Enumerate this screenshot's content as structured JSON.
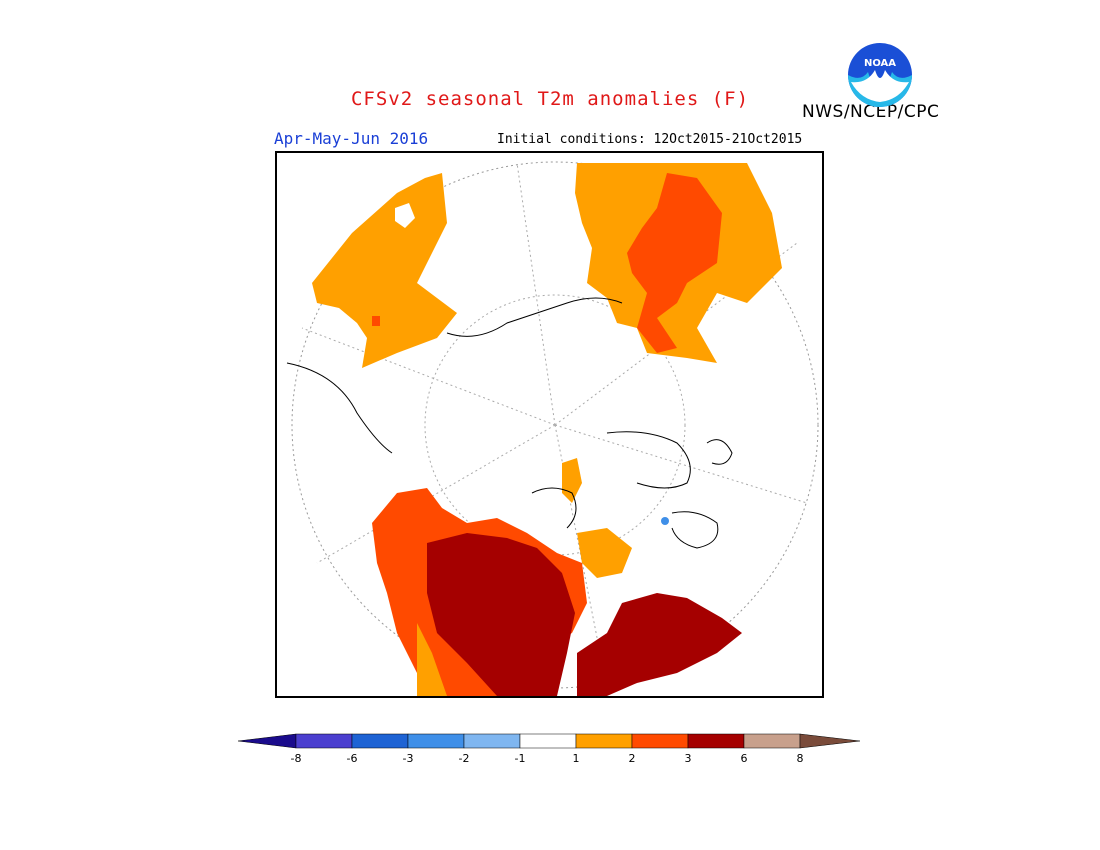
{
  "header": {
    "title": "CFSv2 seasonal T2m anomalies (F)",
    "agency": "NWS/NCEP/CPC",
    "period": "Apr-May-Jun 2016",
    "initial_conditions": "Initial conditions: 12Oct2015-21Oct2015",
    "logo_text": "NOAA"
  },
  "colorbar": {
    "tick_labels": [
      "-8",
      "-6",
      "-3",
      "-2",
      "-1",
      "1",
      "2",
      "3",
      "6",
      "8"
    ],
    "colors": {
      "lt_neg8": "#1a0b8c",
      "neg8_neg6": "#4b3fcf",
      "neg6_neg3": "#1e63d4",
      "neg3_neg2": "#3f8fe8",
      "neg2_neg1": "#7fb6f0",
      "neg1_1": "#ffffff",
      "1_2": "#ffa000",
      "2_3": "#ff4a00",
      "3_6": "#a50000",
      "6_8": "#c8a08c",
      "gt_8": "#7a4b3a"
    }
  }
}
